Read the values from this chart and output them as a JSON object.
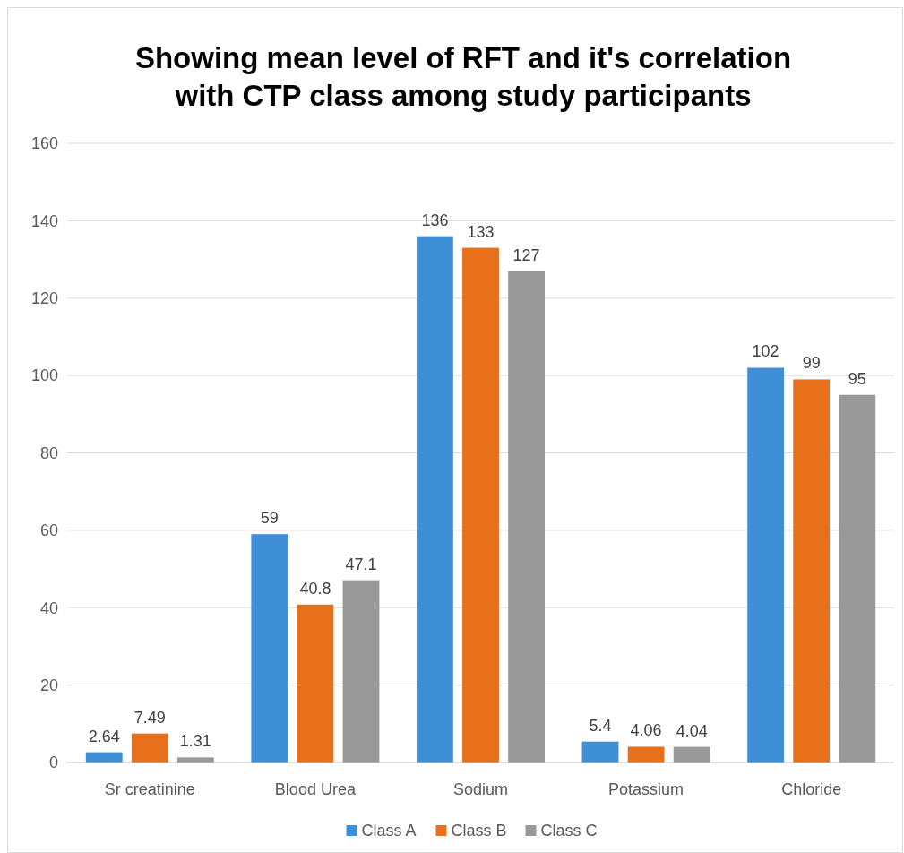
{
  "chart_data": {
    "type": "bar",
    "title": "Showing mean level of RFT and it's correlation with CTP class among study participants",
    "categories": [
      "Sr creatinine",
      "Blood Urea",
      "Sodium",
      "Potassium",
      "Chloride"
    ],
    "series": [
      {
        "name": "Class A",
        "color": "#3f8fd6",
        "values": [
          2.64,
          59,
          136,
          5.4,
          102
        ]
      },
      {
        "name": "Class B",
        "color": "#e8701a",
        "values": [
          7.49,
          40.8,
          133,
          4.06,
          99
        ]
      },
      {
        "name": "Class C",
        "color": "#999999",
        "values": [
          1.31,
          47.1,
          127,
          4.04,
          95
        ]
      }
    ],
    "ylim": [
      0,
      160
    ],
    "yticks": [
      0,
      20,
      40,
      60,
      80,
      100,
      120,
      140,
      160
    ],
    "grid": "y",
    "legend": "bottom",
    "data_labels": true
  }
}
